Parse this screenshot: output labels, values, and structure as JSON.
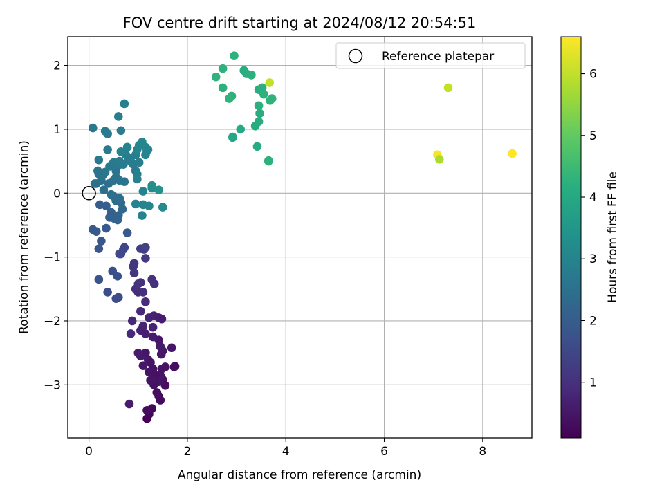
{
  "chart_data": {
    "type": "scatter",
    "title": "FOV centre drift starting at 2024/08/12 20:54:51",
    "xlabel": "Angular distance from reference (arcmin)",
    "ylabel": "Rotation from reference (arcmin)",
    "xlim": [
      -0.43,
      9.0
    ],
    "ylim": [
      -3.83,
      2.45
    ],
    "xticks": [
      "0",
      "2",
      "4",
      "6",
      "8"
    ],
    "yticks": [
      "−3",
      "−2",
      "−1",
      "0",
      "1",
      "2"
    ],
    "grid": true,
    "legend": {
      "position": "top-right",
      "entries": [
        "Reference platepar"
      ]
    },
    "reference_point": {
      "x": 0,
      "y": 0
    },
    "colorbar": {
      "label": "Hours from first FF file",
      "range": [
        0.1,
        6.6
      ],
      "ticks": [
        "1",
        "2",
        "3",
        "4",
        "5",
        "6"
      ],
      "colormap": "viridis"
    },
    "series": [
      {
        "points": [
          {
            "x": 1.18,
            "y": -3.53,
            "c": 0.15
          },
          {
            "x": 1.22,
            "y": -3.46,
            "c": 0.2
          },
          {
            "x": 1.28,
            "y": -3.37,
            "c": 0.25
          },
          {
            "x": 1.18,
            "y": -3.4,
            "c": 0.3
          },
          {
            "x": 1.42,
            "y": -3.18,
            "c": 0.3
          },
          {
            "x": 1.38,
            "y": -3.12,
            "c": 0.35
          },
          {
            "x": 1.45,
            "y": -3.24,
            "c": 0.3
          },
          {
            "x": 1.55,
            "y": -3.01,
            "c": 0.35
          },
          {
            "x": 1.5,
            "y": -2.92,
            "c": 0.4
          },
          {
            "x": 1.42,
            "y": -2.95,
            "c": 0.45
          },
          {
            "x": 1.32,
            "y": -3.0,
            "c": 0.4
          },
          {
            "x": 1.25,
            "y": -2.93,
            "c": 0.45
          },
          {
            "x": 1.45,
            "y": -2.85,
            "c": 0.5
          },
          {
            "x": 1.55,
            "y": -2.72,
            "c": 0.45
          },
          {
            "x": 1.75,
            "y": -2.71,
            "c": 0.3
          },
          {
            "x": 1.73,
            "y": -2.72,
            "c": 0.35
          },
          {
            "x": 1.68,
            "y": -2.42,
            "c": 0.5
          },
          {
            "x": 1.5,
            "y": -2.47,
            "c": 0.55
          },
          {
            "x": 1.47,
            "y": -2.52,
            "c": 0.5
          },
          {
            "x": 1.45,
            "y": -2.4,
            "c": 0.55
          },
          {
            "x": 1.42,
            "y": -2.3,
            "c": 0.5
          },
          {
            "x": 1.3,
            "y": -2.25,
            "c": 0.6
          },
          {
            "x": 1.2,
            "y": -2.6,
            "c": 0.55
          },
          {
            "x": 1.15,
            "y": -2.5,
            "c": 0.5
          },
          {
            "x": 1.25,
            "y": -2.65,
            "c": 0.45
          },
          {
            "x": 1.3,
            "y": -2.75,
            "c": 0.4
          },
          {
            "x": 1.22,
            "y": -2.8,
            "c": 0.45
          },
          {
            "x": 1.1,
            "y": -2.7,
            "c": 0.5
          },
          {
            "x": 1.05,
            "y": -2.55,
            "c": 0.55
          },
          {
            "x": 1.0,
            "y": -2.5,
            "c": 0.6
          },
          {
            "x": 1.35,
            "y": -2.85,
            "c": 0.4
          },
          {
            "x": 1.48,
            "y": -2.75,
            "c": 0.45
          },
          {
            "x": 1.3,
            "y": -2.1,
            "c": 0.7
          },
          {
            "x": 1.22,
            "y": -1.95,
            "c": 0.75
          },
          {
            "x": 1.32,
            "y": -1.92,
            "c": 0.7
          },
          {
            "x": 1.42,
            "y": -1.95,
            "c": 0.65
          },
          {
            "x": 1.48,
            "y": -1.97,
            "c": 0.6
          },
          {
            "x": 1.1,
            "y": -2.08,
            "c": 0.75
          },
          {
            "x": 1.05,
            "y": -2.15,
            "c": 0.7
          },
          {
            "x": 1.15,
            "y": -2.2,
            "c": 0.65
          },
          {
            "x": 0.85,
            "y": -2.2,
            "c": 0.85
          },
          {
            "x": 0.88,
            "y": -2.0,
            "c": 0.8
          },
          {
            "x": 0.82,
            "y": -3.3,
            "c": 0.6
          },
          {
            "x": 1.05,
            "y": -1.85,
            "c": 0.85
          },
          {
            "x": 1.15,
            "y": -1.7,
            "c": 0.9
          },
          {
            "x": 1.0,
            "y": -1.55,
            "c": 0.95
          },
          {
            "x": 1.1,
            "y": -1.55,
            "c": 0.95
          },
          {
            "x": 0.95,
            "y": -1.5,
            "c": 1.0
          },
          {
            "x": 1.05,
            "y": -1.4,
            "c": 1.0
          },
          {
            "x": 1.0,
            "y": -1.42,
            "c": 1.05
          },
          {
            "x": 1.28,
            "y": -1.35,
            "c": 1.05
          },
          {
            "x": 1.33,
            "y": -1.42,
            "c": 1.0
          },
          {
            "x": 0.92,
            "y": -1.25,
            "c": 1.1
          },
          {
            "x": 0.9,
            "y": -1.15,
            "c": 1.15
          },
          {
            "x": 0.92,
            "y": -1.1,
            "c": 1.15
          },
          {
            "x": 1.15,
            "y": -1.02,
            "c": 1.2
          },
          {
            "x": 1.05,
            "y": -0.87,
            "c": 1.3
          },
          {
            "x": 1.12,
            "y": -0.88,
            "c": 1.3
          },
          {
            "x": 1.15,
            "y": -0.85,
            "c": 1.35
          },
          {
            "x": 0.72,
            "y": -0.85,
            "c": 1.45
          },
          {
            "x": 0.7,
            "y": -0.88,
            "c": 1.45
          },
          {
            "x": 0.65,
            "y": -0.95,
            "c": 1.5
          },
          {
            "x": 0.62,
            "y": -0.95,
            "c": 1.5
          },
          {
            "x": 0.55,
            "y": -1.65,
            "c": 1.6
          },
          {
            "x": 0.6,
            "y": -1.63,
            "c": 1.6
          },
          {
            "x": 0.38,
            "y": -1.55,
            "c": 1.65
          },
          {
            "x": 0.2,
            "y": -1.35,
            "c": 1.75
          },
          {
            "x": 0.48,
            "y": -1.22,
            "c": 1.7
          },
          {
            "x": 0.58,
            "y": -1.3,
            "c": 1.7
          },
          {
            "x": 0.25,
            "y": -0.75,
            "c": 1.85
          },
          {
            "x": 0.2,
            "y": -0.87,
            "c": 1.85
          },
          {
            "x": 0.08,
            "y": -0.57,
            "c": 1.9
          },
          {
            "x": 0.15,
            "y": -0.6,
            "c": 1.9
          },
          {
            "x": 0.35,
            "y": -0.55,
            "c": 1.95
          },
          {
            "x": 0.78,
            "y": -0.62,
            "c": 1.9
          },
          {
            "x": 0.22,
            "y": -0.18,
            "c": 2.0
          },
          {
            "x": 0.35,
            "y": -0.2,
            "c": 2.05
          },
          {
            "x": 0.45,
            "y": -0.3,
            "c": 2.1
          },
          {
            "x": 0.5,
            "y": -0.35,
            "c": 2.15
          },
          {
            "x": 0.52,
            "y": -0.4,
            "c": 2.1
          },
          {
            "x": 0.6,
            "y": -0.35,
            "c": 2.2
          },
          {
            "x": 0.58,
            "y": -0.42,
            "c": 2.15
          },
          {
            "x": 0.42,
            "y": -0.38,
            "c": 2.1
          },
          {
            "x": 0.68,
            "y": -0.25,
            "c": 2.25
          },
          {
            "x": 0.65,
            "y": -0.15,
            "c": 2.3
          },
          {
            "x": 0.55,
            "y": -0.12,
            "c": 2.35
          },
          {
            "x": 0.5,
            "y": -0.05,
            "c": 2.4
          },
          {
            "x": 0.45,
            "y": -0.02,
            "c": 2.45
          },
          {
            "x": 0.62,
            "y": -0.08,
            "c": 2.4
          },
          {
            "x": 0.3,
            "y": 0.05,
            "c": 2.45
          },
          {
            "x": 0.25,
            "y": 0.2,
            "c": 2.5
          },
          {
            "x": 0.4,
            "y": 0.15,
            "c": 2.5
          },
          {
            "x": 0.5,
            "y": 0.2,
            "c": 2.55
          },
          {
            "x": 0.55,
            "y": 0.25,
            "c": 2.6
          },
          {
            "x": 0.62,
            "y": 0.2,
            "c": 2.55
          },
          {
            "x": 0.72,
            "y": 0.18,
            "c": 2.6
          },
          {
            "x": 0.2,
            "y": 0.3,
            "c": 2.55
          },
          {
            "x": 0.18,
            "y": 0.35,
            "c": 2.6
          },
          {
            "x": 0.28,
            "y": 0.28,
            "c": 2.6
          },
          {
            "x": 0.33,
            "y": 0.33,
            "c": 2.65
          },
          {
            "x": 0.15,
            "y": 0.15,
            "c": 2.55
          },
          {
            "x": 0.42,
            "y": 0.42,
            "c": 2.7
          },
          {
            "x": 0.5,
            "y": 0.48,
            "c": 2.75
          },
          {
            "x": 0.58,
            "y": 0.42,
            "c": 2.7
          },
          {
            "x": 0.62,
            "y": 0.5,
            "c": 2.8
          },
          {
            "x": 0.7,
            "y": 0.45,
            "c": 2.8
          },
          {
            "x": 0.8,
            "y": 0.55,
            "c": 2.85
          },
          {
            "x": 0.85,
            "y": 0.5,
            "c": 2.85
          },
          {
            "x": 0.9,
            "y": 0.45,
            "c": 2.8
          },
          {
            "x": 0.95,
            "y": 0.35,
            "c": 2.75
          },
          {
            "x": 1.02,
            "y": 0.48,
            "c": 2.85
          },
          {
            "x": 0.95,
            "y": 0.6,
            "c": 2.9
          },
          {
            "x": 0.75,
            "y": 0.6,
            "c": 2.9
          },
          {
            "x": 0.65,
            "y": 0.65,
            "c": 2.95
          },
          {
            "x": 0.78,
            "y": 0.72,
            "c": 3.0
          },
          {
            "x": 0.98,
            "y": 0.68,
            "c": 3.0
          },
          {
            "x": 1.02,
            "y": 0.75,
            "c": 3.05
          },
          {
            "x": 1.08,
            "y": 0.8,
            "c": 3.1
          },
          {
            "x": 1.15,
            "y": 0.6,
            "c": 3.05
          },
          {
            "x": 1.18,
            "y": 0.67,
            "c": 3.1
          },
          {
            "x": 1.15,
            "y": 0.72,
            "c": 3.1
          },
          {
            "x": 1.2,
            "y": 0.68,
            "c": 3.05
          },
          {
            "x": 0.98,
            "y": 0.3,
            "c": 2.9
          },
          {
            "x": 0.98,
            "y": 0.22,
            "c": 2.95
          },
          {
            "x": 1.1,
            "y": 0.03,
            "c": 3.0
          },
          {
            "x": 1.28,
            "y": 0.08,
            "c": 3.25
          },
          {
            "x": 1.28,
            "y": 0.12,
            "c": 3.3
          },
          {
            "x": 1.42,
            "y": 0.05,
            "c": 3.4
          },
          {
            "x": 1.5,
            "y": -0.22,
            "c": 3.2
          },
          {
            "x": 1.22,
            "y": -0.2,
            "c": 3.1
          },
          {
            "x": 1.1,
            "y": -0.18,
            "c": 3.05
          },
          {
            "x": 1.08,
            "y": -0.35,
            "c": 3.0
          },
          {
            "x": 0.95,
            "y": -0.17,
            "c": 3.0
          },
          {
            "x": 0.38,
            "y": 0.68,
            "c": 2.75
          },
          {
            "x": 0.2,
            "y": 0.52,
            "c": 2.7
          },
          {
            "x": 0.08,
            "y": 1.02,
            "c": 2.7
          },
          {
            "x": 0.33,
            "y": 0.97,
            "c": 2.75
          },
          {
            "x": 0.38,
            "y": 0.93,
            "c": 2.75
          },
          {
            "x": 0.65,
            "y": 0.98,
            "c": 2.8
          },
          {
            "x": 0.6,
            "y": 1.2,
            "c": 2.85
          },
          {
            "x": 0.72,
            "y": 1.4,
            "c": 2.9
          },
          {
            "x": 0.12,
            "y": 0.15,
            "c": 2.5
          },
          {
            "x": 0.55,
            "y": 0.35,
            "c": 2.65
          },
          {
            "x": 2.95,
            "y": 2.15,
            "c": 4.2
          },
          {
            "x": 2.72,
            "y": 1.95,
            "c": 4.25
          },
          {
            "x": 2.58,
            "y": 1.82,
            "c": 4.3
          },
          {
            "x": 2.72,
            "y": 1.65,
            "c": 4.2
          },
          {
            "x": 2.9,
            "y": 1.52,
            "c": 4.25
          },
          {
            "x": 2.85,
            "y": 1.48,
            "c": 4.3
          },
          {
            "x": 3.15,
            "y": 1.92,
            "c": 4.1
          },
          {
            "x": 3.2,
            "y": 1.87,
            "c": 4.15
          },
          {
            "x": 3.3,
            "y": 1.85,
            "c": 4.2
          },
          {
            "x": 3.45,
            "y": 1.62,
            "c": 4.15
          },
          {
            "x": 3.52,
            "y": 1.65,
            "c": 4.2
          },
          {
            "x": 3.55,
            "y": 1.55,
            "c": 4.25
          },
          {
            "x": 3.68,
            "y": 1.45,
            "c": 4.3
          },
          {
            "x": 3.72,
            "y": 1.48,
            "c": 4.3
          },
          {
            "x": 3.45,
            "y": 1.37,
            "c": 4.2
          },
          {
            "x": 3.47,
            "y": 1.25,
            "c": 4.15
          },
          {
            "x": 3.45,
            "y": 1.12,
            "c": 4.1
          },
          {
            "x": 3.38,
            "y": 1.05,
            "c": 4.05
          },
          {
            "x": 3.08,
            "y": 1.0,
            "c": 4.0
          },
          {
            "x": 2.92,
            "y": 0.88,
            "c": 3.95
          },
          {
            "x": 2.92,
            "y": 0.87,
            "c": 3.95
          },
          {
            "x": 3.42,
            "y": 0.73,
            "c": 4.05
          },
          {
            "x": 3.65,
            "y": 0.5,
            "c": 4.2
          },
          {
            "x": 3.65,
            "y": 0.51,
            "c": 4.2
          },
          {
            "x": 3.67,
            "y": 1.73,
            "c": 6.0
          },
          {
            "x": 7.3,
            "y": 1.65,
            "c": 6.0
          },
          {
            "x": 7.08,
            "y": 0.6,
            "c": 6.55
          },
          {
            "x": 7.12,
            "y": 0.53,
            "c": 5.8
          },
          {
            "x": 8.6,
            "y": 0.62,
            "c": 6.6
          }
        ]
      }
    ]
  }
}
